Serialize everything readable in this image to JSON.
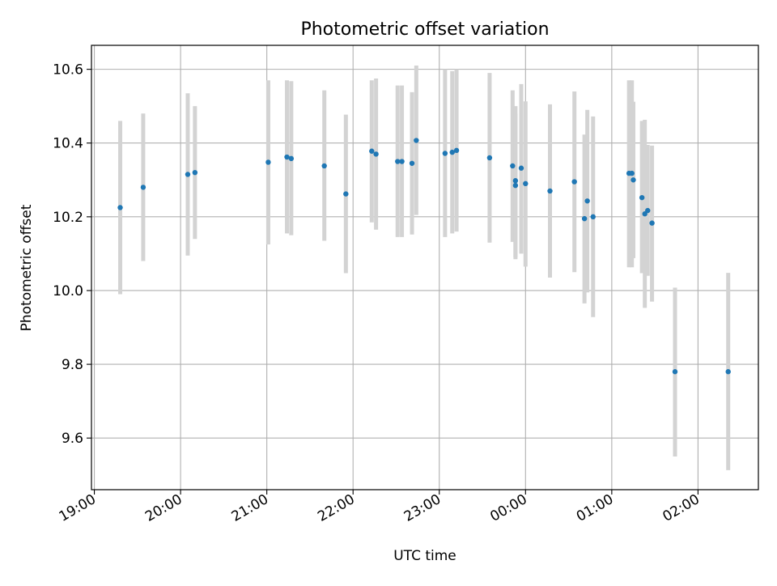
{
  "chart_data": {
    "type": "scatter",
    "title": "Photometric offset variation",
    "xlabel": "UTC time",
    "ylabel": "Photometric offset",
    "x_ticks": [
      "19:00",
      "20:00",
      "21:00",
      "22:00",
      "23:00",
      "00:00",
      "01:00",
      "02:00"
    ],
    "y_ticks": [
      "9.6",
      "9.8",
      "10.0",
      "10.2",
      "10.4",
      "10.6"
    ],
    "y_tick_values": [
      9.6,
      9.8,
      10.0,
      10.2,
      10.4,
      10.6
    ],
    "xlim": [
      "18:58",
      "02:42"
    ],
    "ylim": [
      9.46,
      10.665
    ],
    "grid": true,
    "errorbar_color": "#d3d3d3",
    "point_color": "#1f77b4",
    "points": [
      {
        "t": "19:18",
        "y": 10.225,
        "lo": 9.99,
        "hi": 10.46
      },
      {
        "t": "19:34",
        "y": 10.28,
        "lo": 10.08,
        "hi": 10.48
      },
      {
        "t": "20:05",
        "y": 10.315,
        "lo": 10.095,
        "hi": 10.535
      },
      {
        "t": "20:10",
        "y": 10.32,
        "lo": 10.14,
        "hi": 10.5
      },
      {
        "t": "21:01",
        "y": 10.348,
        "lo": 10.125,
        "hi": 10.57
      },
      {
        "t": "21:14",
        "y": 10.362,
        "lo": 10.155,
        "hi": 10.57
      },
      {
        "t": "21:17",
        "y": 10.358,
        "lo": 10.15,
        "hi": 10.568
      },
      {
        "t": "21:40",
        "y": 10.338,
        "lo": 10.135,
        "hi": 10.543
      },
      {
        "t": "21:55",
        "y": 10.262,
        "lo": 10.047,
        "hi": 10.477
      },
      {
        "t": "22:13",
        "y": 10.378,
        "lo": 10.185,
        "hi": 10.57
      },
      {
        "t": "22:16",
        "y": 10.37,
        "lo": 10.165,
        "hi": 10.575
      },
      {
        "t": "22:31",
        "y": 10.35,
        "lo": 10.145,
        "hi": 10.556
      },
      {
        "t": "22:34",
        "y": 10.35,
        "lo": 10.145,
        "hi": 10.556
      },
      {
        "t": "22:41",
        "y": 10.345,
        "lo": 10.152,
        "hi": 10.538
      },
      {
        "t": "22:44",
        "y": 10.407,
        "lo": 10.205,
        "hi": 10.61
      },
      {
        "t": "23:04",
        "y": 10.372,
        "lo": 10.145,
        "hi": 10.6
      },
      {
        "t": "23:09",
        "y": 10.375,
        "lo": 10.155,
        "hi": 10.595
      },
      {
        "t": "23:12",
        "y": 10.38,
        "lo": 10.16,
        "hi": 10.6
      },
      {
        "t": "23:35",
        "y": 10.36,
        "lo": 10.13,
        "hi": 10.59
      },
      {
        "t": "23:51",
        "y": 10.338,
        "lo": 10.132,
        "hi": 10.543
      },
      {
        "t": "23:53",
        "y": 10.298,
        "lo": 10.085,
        "hi": 10.5
      },
      {
        "t": "23:53",
        "y": 10.285,
        "lo": 10.09,
        "hi": 10.48
      },
      {
        "t": "23:57",
        "y": 10.332,
        "lo": 10.1,
        "hi": 10.56
      },
      {
        "t": "00:00",
        "y": 10.29,
        "lo": 10.065,
        "hi": 10.513
      },
      {
        "t": "00:17",
        "y": 10.27,
        "lo": 10.035,
        "hi": 10.505
      },
      {
        "t": "00:34",
        "y": 10.295,
        "lo": 10.05,
        "hi": 10.54
      },
      {
        "t": "00:41",
        "y": 10.195,
        "lo": 9.965,
        "hi": 10.423
      },
      {
        "t": "00:43",
        "y": 10.243,
        "lo": 9.995,
        "hi": 10.49
      },
      {
        "t": "00:47",
        "y": 10.2,
        "lo": 9.928,
        "hi": 10.472
      },
      {
        "t": "01:12",
        "y": 10.318,
        "lo": 10.063,
        "hi": 10.57
      },
      {
        "t": "01:14",
        "y": 10.318,
        "lo": 10.063,
        "hi": 10.57
      },
      {
        "t": "01:15",
        "y": 10.3,
        "lo": 10.088,
        "hi": 10.512
      },
      {
        "t": "01:21",
        "y": 10.252,
        "lo": 10.047,
        "hi": 10.46
      },
      {
        "t": "01:23",
        "y": 10.208,
        "lo": 9.953,
        "hi": 10.463
      },
      {
        "t": "01:25",
        "y": 10.217,
        "lo": 10.04,
        "hi": 10.395
      },
      {
        "t": "01:28",
        "y": 10.183,
        "lo": 9.97,
        "hi": 10.393
      },
      {
        "t": "01:44",
        "y": 9.78,
        "lo": 9.55,
        "hi": 10.008
      },
      {
        "t": "02:21",
        "y": 9.78,
        "lo": 9.513,
        "hi": 10.048
      }
    ]
  }
}
